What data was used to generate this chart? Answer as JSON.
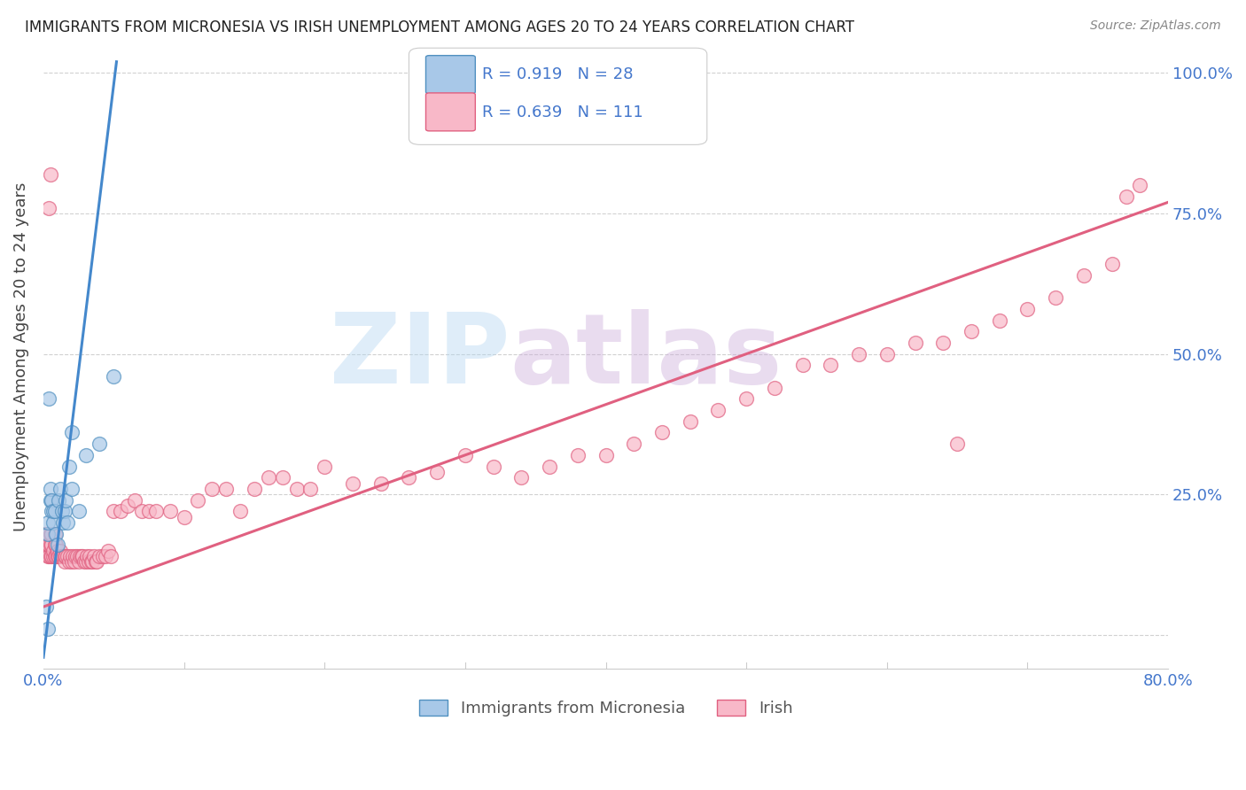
{
  "title": "IMMIGRANTS FROM MICRONESIA VS IRISH UNEMPLOYMENT AMONG AGES 20 TO 24 YEARS CORRELATION CHART",
  "source": "Source: ZipAtlas.com",
  "ylabel": "Unemployment Among Ages 20 to 24 years",
  "legend_blue_r": "R = 0.919",
  "legend_blue_n": "N = 28",
  "legend_pink_r": "R = 0.639",
  "legend_pink_n": "N = 111",
  "legend_label_blue": "Immigrants from Micronesia",
  "legend_label_pink": "Irish",
  "blue_scatter_color": "#a8c8e8",
  "blue_edge_color": "#5090c0",
  "pink_scatter_color": "#f8b8c8",
  "pink_edge_color": "#e06080",
  "blue_line_color": "#4488cc",
  "pink_line_color": "#e06080",
  "blue_scatter_x": [
    0.002,
    0.003,
    0.003,
    0.004,
    0.005,
    0.005,
    0.006,
    0.006,
    0.007,
    0.007,
    0.008,
    0.009,
    0.01,
    0.011,
    0.012,
    0.013,
    0.014,
    0.015,
    0.016,
    0.017,
    0.018,
    0.02,
    0.025,
    0.03,
    0.04,
    0.05,
    0.02,
    0.003
  ],
  "blue_scatter_y": [
    0.05,
    0.18,
    0.2,
    0.42,
    0.24,
    0.26,
    0.22,
    0.24,
    0.2,
    0.22,
    0.22,
    0.18,
    0.16,
    0.24,
    0.26,
    0.22,
    0.2,
    0.22,
    0.24,
    0.2,
    0.3,
    0.26,
    0.22,
    0.32,
    0.34,
    0.46,
    0.36,
    0.01
  ],
  "pink_scatter_x": [
    0.001,
    0.002,
    0.002,
    0.002,
    0.003,
    0.003,
    0.003,
    0.004,
    0.004,
    0.005,
    0.005,
    0.005,
    0.006,
    0.006,
    0.006,
    0.007,
    0.007,
    0.008,
    0.008,
    0.008,
    0.009,
    0.009,
    0.01,
    0.01,
    0.011,
    0.012,
    0.012,
    0.013,
    0.014,
    0.015,
    0.015,
    0.016,
    0.017,
    0.018,
    0.019,
    0.02,
    0.021,
    0.022,
    0.023,
    0.024,
    0.025,
    0.026,
    0.027,
    0.028,
    0.029,
    0.03,
    0.031,
    0.032,
    0.033,
    0.034,
    0.035,
    0.036,
    0.037,
    0.038,
    0.04,
    0.042,
    0.044,
    0.046,
    0.048,
    0.05,
    0.055,
    0.06,
    0.065,
    0.07,
    0.075,
    0.08,
    0.09,
    0.1,
    0.11,
    0.12,
    0.13,
    0.14,
    0.15,
    0.16,
    0.17,
    0.18,
    0.19,
    0.2,
    0.22,
    0.24,
    0.26,
    0.28,
    0.3,
    0.32,
    0.34,
    0.36,
    0.38,
    0.4,
    0.42,
    0.44,
    0.46,
    0.48,
    0.5,
    0.52,
    0.54,
    0.56,
    0.58,
    0.6,
    0.62,
    0.64,
    0.66,
    0.68,
    0.7,
    0.72,
    0.74,
    0.76,
    0.004,
    0.005,
    0.77,
    0.78,
    0.65
  ],
  "pink_scatter_y": [
    0.18,
    0.16,
    0.15,
    0.17,
    0.14,
    0.16,
    0.18,
    0.14,
    0.16,
    0.14,
    0.16,
    0.18,
    0.14,
    0.16,
    0.18,
    0.14,
    0.15,
    0.14,
    0.16,
    0.18,
    0.14,
    0.16,
    0.14,
    0.15,
    0.14,
    0.14,
    0.15,
    0.14,
    0.14,
    0.13,
    0.14,
    0.14,
    0.14,
    0.13,
    0.14,
    0.13,
    0.14,
    0.13,
    0.14,
    0.14,
    0.13,
    0.14,
    0.14,
    0.14,
    0.13,
    0.13,
    0.14,
    0.13,
    0.14,
    0.13,
    0.13,
    0.14,
    0.13,
    0.13,
    0.14,
    0.14,
    0.14,
    0.15,
    0.14,
    0.22,
    0.22,
    0.23,
    0.24,
    0.22,
    0.22,
    0.22,
    0.22,
    0.21,
    0.24,
    0.26,
    0.26,
    0.22,
    0.26,
    0.28,
    0.28,
    0.26,
    0.26,
    0.3,
    0.27,
    0.27,
    0.28,
    0.29,
    0.32,
    0.3,
    0.28,
    0.3,
    0.32,
    0.32,
    0.34,
    0.36,
    0.38,
    0.4,
    0.42,
    0.44,
    0.48,
    0.48,
    0.5,
    0.5,
    0.52,
    0.52,
    0.54,
    0.56,
    0.58,
    0.6,
    0.64,
    0.66,
    0.76,
    0.82,
    0.78,
    0.8,
    0.34
  ],
  "blue_line_x": [
    0.0,
    0.052
  ],
  "blue_line_y": [
    -0.04,
    1.02
  ],
  "pink_line_x": [
    0.0,
    0.8
  ],
  "pink_line_y": [
    0.05,
    0.77
  ],
  "ytick_positions": [
    0.0,
    0.25,
    0.5,
    0.75,
    1.0
  ],
  "ytick_labels": [
    "",
    "25.0%",
    "50.0%",
    "75.0%",
    "100.0%"
  ],
  "xtick_positions": [
    0.0,
    0.8
  ],
  "xtick_labels": [
    "0.0%",
    "80.0%"
  ],
  "xmin": 0.0,
  "xmax": 0.8,
  "ymin": -0.06,
  "ymax": 1.05,
  "tick_color": "#4477cc",
  "grid_color": "#cccccc",
  "title_fontsize": 12,
  "label_fontsize": 13,
  "tick_fontsize": 13
}
